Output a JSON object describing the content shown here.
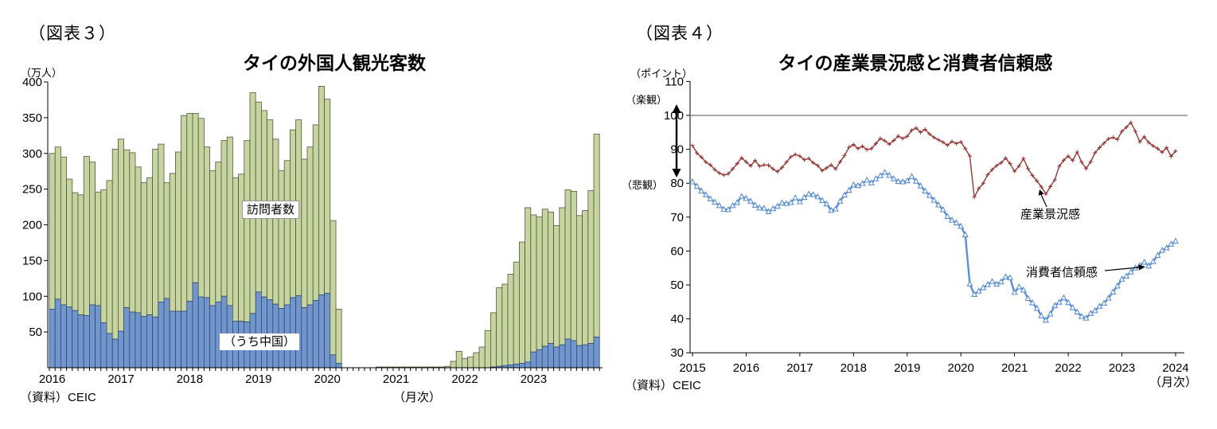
{
  "fig3": {
    "tag": "（図表３）",
    "unit": "（万人）",
    "title": "タイの外国人観光客数",
    "total_label": "訪問者数",
    "china_label": "（うち中国）",
    "source": "（資料）CEIC",
    "freq": "（月次）"
  },
  "fig4": {
    "tag": "（図表４）",
    "unit": "（ポイント）",
    "title": "タイの産業景況感と消費者信頼感",
    "optimism": "（楽観）",
    "pessimism": "（悲観）",
    "tisi_label": "産業景況感",
    "cci_label": "消費者信頼感",
    "source": "（資料）CEIC",
    "freq": "（月次）"
  },
  "chart_data": [
    {
      "type": "bar",
      "stacked": true,
      "title": "タイの外国人観光客数",
      "ylabel": "万人",
      "xlabel": "月次",
      "ylim": [
        0,
        400
      ],
      "ytick_step": 50,
      "grid": false,
      "legend_position": "inside-plot",
      "years": [
        2016,
        2017,
        2018,
        2019,
        2020,
        2021,
        2022,
        2023
      ],
      "series": [
        {
          "name": "訪問者数",
          "color": "#c6d5a0",
          "border": "#55553e",
          "values": [
            300,
            309,
            295,
            264,
            245,
            242,
            296,
            288,
            246,
            249,
            262,
            306,
            320,
            305,
            301,
            281,
            259,
            266,
            306,
            313,
            259,
            272,
            302,
            353,
            356,
            356,
            349,
            309,
            276,
            288,
            318,
            323,
            266,
            271,
            318,
            385,
            372,
            360,
            347,
            320,
            276,
            290,
            333,
            347,
            292,
            309,
            340,
            394,
            376,
            206,
            82,
            0,
            0,
            0,
            0,
            0,
            0,
            1,
            1,
            1,
            1,
            1,
            1,
            1,
            1,
            1,
            1,
            1,
            1,
            2,
            9,
            23,
            13,
            15,
            21,
            29,
            52,
            77,
            112,
            117,
            131,
            148,
            176,
            224,
            214,
            211,
            222,
            218,
            199,
            224,
            249,
            247,
            213,
            220,
            248,
            327
          ]
        },
        {
          "name": "（うち中国）",
          "color": "#7296cc",
          "border": "#2b4a7d",
          "values": [
            82,
            96,
            88,
            85,
            80,
            74,
            73,
            88,
            87,
            63,
            48,
            40,
            51,
            84,
            78,
            77,
            72,
            74,
            71,
            92,
            97,
            79,
            79,
            79,
            93,
            119,
            99,
            98,
            87,
            92,
            100,
            87,
            65,
            65,
            64,
            76,
            106,
            99,
            95,
            89,
            83,
            88,
            98,
            101,
            84,
            88,
            94,
            102,
            104,
            18,
            6,
            0,
            0,
            0,
            0,
            0,
            0,
            0,
            0,
            0,
            0,
            0,
            0,
            0,
            0,
            0,
            0,
            0,
            0,
            0,
            0,
            0,
            0,
            0,
            0,
            0,
            0,
            1,
            2,
            3,
            4,
            5,
            6,
            8,
            22,
            25,
            30,
            34,
            29,
            32,
            40,
            38,
            31,
            32,
            34,
            43
          ]
        }
      ]
    },
    {
      "type": "line",
      "title": "タイの産業景況感と消費者信頼感",
      "ylabel": "ポイント",
      "xlabel": "月次",
      "ylim": [
        30,
        110
      ],
      "yticks": [
        110,
        100,
        90,
        80,
        70,
        60,
        50,
        40,
        30
      ],
      "reference_line": 100,
      "grid": false,
      "years": [
        2015,
        2016,
        2017,
        2018,
        2019,
        2020,
        2021,
        2022,
        2023,
        2024
      ],
      "series": [
        {
          "name": "産業景況感",
          "color": "#953735",
          "marker": "plus",
          "values": [
            91.1,
            88.9,
            87.7,
            86.2,
            85.4,
            84.0,
            83.0,
            82.4,
            82.8,
            84.2,
            85.8,
            87.5,
            86.3,
            85.1,
            86.7,
            85.0,
            85.4,
            85.3,
            84.2,
            83.4,
            84.6,
            86.2,
            87.8,
            88.5,
            88.0,
            86.9,
            87.3,
            86.0,
            85.2,
            83.7,
            84.5,
            85.4,
            84.2,
            86.3,
            88.2,
            90.6,
            91.4,
            90.2,
            90.9,
            89.9,
            90.2,
            91.7,
            93.2,
            92.5,
            91.5,
            92.6,
            93.9,
            93.2,
            93.8,
            95.6,
            96.3,
            95.0,
            95.9,
            94.5,
            93.5,
            92.8,
            92.1,
            91.2,
            92.3,
            91.7,
            92.2,
            90.2,
            88.0,
            75.9,
            78.4,
            80.0,
            82.5,
            84.0,
            85.2,
            86.0,
            87.4,
            85.8,
            83.5,
            85.1,
            87.3,
            84.3,
            82.3,
            80.7,
            78.9,
            76.8,
            79.0,
            81.0,
            85.0,
            86.8,
            88.0,
            86.7,
            89.2,
            86.2,
            84.3,
            86.3,
            89.0,
            90.5,
            91.8,
            93.1,
            93.5,
            92.9,
            95.3,
            96.5,
            97.9,
            95.3,
            92.2,
            93.7,
            92.0,
            91.0,
            90.2,
            89.1,
            90.5,
            87.9,
            89.5
          ]
        },
        {
          "name": "消費者信頼感",
          "color": "#5b8fd4",
          "marker": "triangle-open",
          "values": [
            80.4,
            79.1,
            77.7,
            76.6,
            75.4,
            74.4,
            73.4,
            72.3,
            72.2,
            73.4,
            74.3,
            76.1,
            75.5,
            74.7,
            73.5,
            72.7,
            72.6,
            71.6,
            72.5,
            73.2,
            74.2,
            74.0,
            74.3,
            75.7,
            74.5,
            75.8,
            76.8,
            76.6,
            76.0,
            74.9,
            73.9,
            72.0,
            72.4,
            74.7,
            76.5,
            77.9,
            79.5,
            79.3,
            79.9,
            80.9,
            80.1,
            81.3,
            82.2,
            83.2,
            82.3,
            81.3,
            80.5,
            80.4,
            80.7,
            82.0,
            80.6,
            79.2,
            77.7,
            76.4,
            75.0,
            73.6,
            72.2,
            70.2,
            69.1,
            68.3,
            67.3,
            64.8,
            50.3,
            47.2,
            48.2,
            49.2,
            50.1,
            51.0,
            50.2,
            50.9,
            52.4,
            52.1,
            47.8,
            49.4,
            48.5,
            46.0,
            44.7,
            43.1,
            40.9,
            39.6,
            41.4,
            43.9,
            44.9,
            46.2,
            44.8,
            43.3,
            42.0,
            40.7,
            40.2,
            41.6,
            42.4,
            43.7,
            44.6,
            46.1,
            47.9,
            49.7,
            51.7,
            52.6,
            53.8,
            55.0,
            55.7,
            56.7,
            55.6,
            56.9,
            58.7,
            60.2,
            60.9,
            62.0,
            62.9
          ]
        }
      ]
    }
  ]
}
